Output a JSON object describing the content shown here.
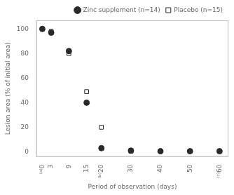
{
  "chart_data": {
    "type": "scatter",
    "xlabel": "Period of observation (days)",
    "ylabel": "Lesion area (% of initial area)",
    "series": [
      {
        "name": "Zinc supplement (n=14)",
        "color": "#2a2a2a",
        "marker": "circle",
        "x": [
          0,
          3,
          9,
          15,
          20,
          30,
          40,
          50,
          60
        ],
        "values": [
          100,
          97,
          82,
          40,
          3,
          1,
          0.5,
          0.5,
          0.5
        ]
      },
      {
        "name": "Placebo (n=15)",
        "color": "#2a2a2a",
        "marker": "open_square",
        "x": [
          0,
          3,
          9,
          15,
          20,
          30
        ],
        "values": [
          100,
          98,
          80,
          49,
          20,
          0.5
        ]
      }
    ],
    "xlim": [
      -2,
      63
    ],
    "ylim": [
      -4,
      107
    ],
    "xticks": [
      {
        "value": 0,
        "label": "⁽ᵃ⁾0"
      },
      3,
      9,
      15,
      {
        "value": 20,
        "label": "⁽ᵇ⁾20"
      },
      30,
      40,
      {
        "value": 60,
        "label": "⁽ᶜ⁾60"
      },
      50
    ],
    "yticks": [
      0,
      20,
      40,
      60,
      80,
      100
    ],
    "grid": false,
    "legend": "upper right"
  }
}
